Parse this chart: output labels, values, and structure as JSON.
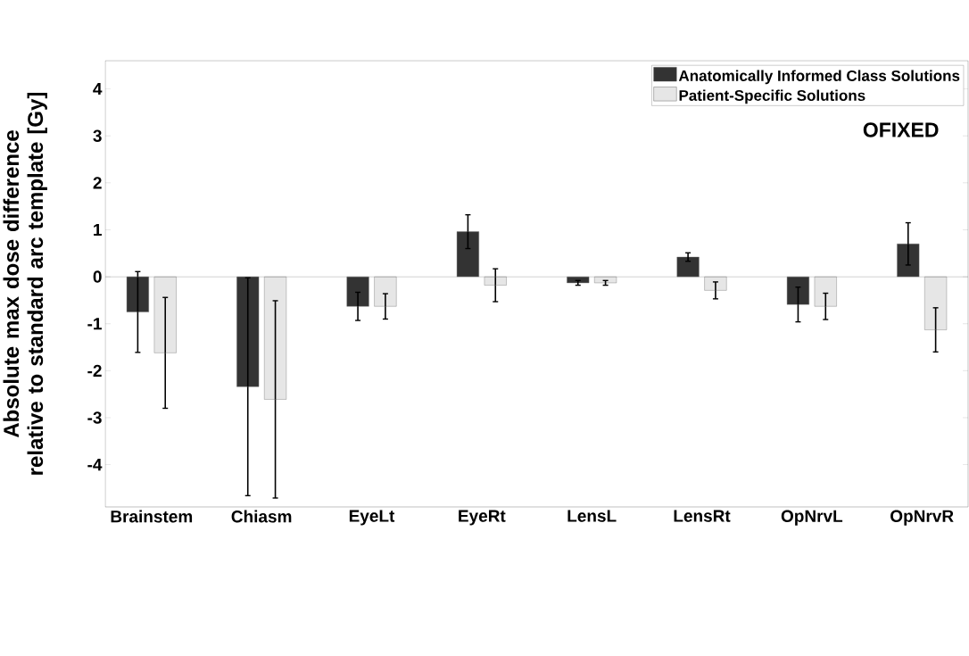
{
  "chart_data": {
    "type": "bar",
    "ylabel": "Absolute max dose difference relative to standard arc template [Gy]",
    "categories": [
      "Brainstem",
      "Chiasm",
      "EyeLt",
      "EyeRt",
      "LensL",
      "LensRt",
      "OpNrvL",
      "OpNrvR"
    ],
    "series": [
      {
        "name": "Anatomically Informed Class Solutions",
        "color": "#333333",
        "values": [
          -0.75,
          -2.34,
          -0.63,
          0.96,
          -0.13,
          0.42,
          -0.59,
          0.7
        ],
        "errors": [
          0.86,
          2.32,
          0.3,
          0.36,
          0.05,
          0.09,
          0.37,
          0.45
        ]
      },
      {
        "name": "Patient-Specific Solutions",
        "color": "#e6e6e6",
        "values": [
          -1.62,
          -2.61,
          -0.63,
          -0.18,
          -0.13,
          -0.29,
          -0.63,
          -1.13
        ],
        "errors": [
          1.18,
          2.1,
          0.27,
          0.35,
          0.05,
          0.18,
          0.28,
          0.47
        ]
      }
    ],
    "ylim": [
      -4.9,
      4.6
    ],
    "yticks": [
      -4,
      -3,
      -2,
      -1,
      0,
      1,
      2,
      3,
      4
    ],
    "legend": "top right",
    "grid": false,
    "ref_lines": [
      {
        "axis": "y",
        "value": 0,
        "color": "#808080"
      }
    ],
    "annotations": [
      "OFIXED"
    ]
  }
}
